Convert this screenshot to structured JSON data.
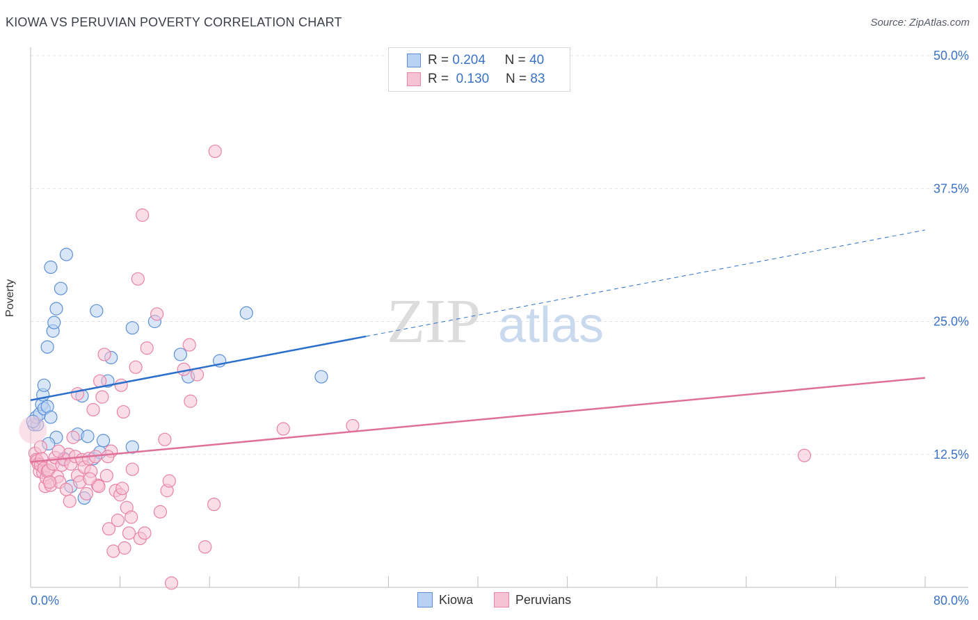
{
  "header": {
    "title": "KIOWA VS PERUVIAN POVERTY CORRELATION CHART",
    "source": "Source: ZipAtlas.com"
  },
  "watermark": {
    "zip": "ZIP",
    "atlas": "atlas"
  },
  "legend": {
    "kiowa": {
      "r_label": "R =",
      "r_value": "0.204",
      "n_label": "N =",
      "n_value": "40"
    },
    "peruvians": {
      "r_label": "R =",
      "r_value": "0.130",
      "n_label": "N =",
      "n_value": "83"
    }
  },
  "chart_data": {
    "type": "scatter",
    "title": "KIOWA VS PERUVIAN POVERTY CORRELATION CHART",
    "xlabel": "",
    "ylabel": "Poverty",
    "xlim": [
      0,
      80
    ],
    "ylim": [
      0,
      50
    ],
    "x_tick_labels": [
      "0.0%",
      "80.0%"
    ],
    "y_ticks": [
      12.5,
      25.0,
      37.5,
      50.0
    ],
    "y_tick_labels": [
      "12.5%",
      "25.0%",
      "37.5%",
      "50.0%"
    ],
    "grid": true,
    "legend_position": "bottom-center",
    "colors": {
      "kiowa": "#5b8fd6",
      "kiowa_fill": "#b9d1f2",
      "kiowa_line": "#2a6fcb",
      "peruvians": "#e882a6",
      "peruvians_fill": "#f6c3d4",
      "peruvians_line": "#e0709a"
    },
    "series": [
      {
        "name": "Kiowa",
        "r": 0.204,
        "n": 40,
        "trend": {
          "solid": [
            [
              0,
              17.6
            ],
            [
              30,
              23.6
            ]
          ],
          "dashed": [
            [
              30,
              23.6
            ],
            [
              80,
              33.6
            ]
          ]
        },
        "points": [
          [
            0.3,
            15.3
          ],
          [
            0.6,
            15.3
          ],
          [
            0.5,
            16.0
          ],
          [
            0.8,
            16.3
          ],
          [
            1.0,
            17.2
          ],
          [
            1.2,
            16.8
          ],
          [
            1.5,
            17.0
          ],
          [
            1.8,
            16.0
          ],
          [
            1.1,
            18.1
          ],
          [
            1.2,
            19.0
          ],
          [
            1.5,
            22.6
          ],
          [
            2.0,
            24.1
          ],
          [
            2.1,
            24.9
          ],
          [
            2.3,
            26.2
          ],
          [
            1.8,
            30.1
          ],
          [
            2.7,
            28.1
          ],
          [
            3.2,
            31.3
          ],
          [
            2.3,
            14.1
          ],
          [
            1.6,
            13.5
          ],
          [
            3.0,
            12.1
          ],
          [
            3.6,
            9.5
          ],
          [
            4.2,
            14.4
          ],
          [
            4.6,
            18.0
          ],
          [
            5.1,
            14.2
          ],
          [
            5.6,
            12.1
          ],
          [
            5.9,
            26.0
          ],
          [
            6.2,
            12.7
          ],
          [
            6.5,
            13.8
          ],
          [
            6.9,
            19.4
          ],
          [
            7.2,
            21.6
          ],
          [
            4.8,
            8.4
          ],
          [
            9.1,
            13.2
          ],
          [
            9.1,
            24.4
          ],
          [
            11.1,
            25.0
          ],
          [
            13.4,
            21.9
          ],
          [
            14.1,
            19.8
          ],
          [
            16.9,
            21.3
          ],
          [
            19.3,
            25.8
          ],
          [
            26.0,
            19.8
          ],
          [
            0.2,
            15.6
          ]
        ]
      },
      {
        "name": "Peruvians",
        "r": 0.13,
        "n": 83,
        "trend": {
          "solid": [
            [
              0,
              11.8
            ],
            [
              80,
              19.7
            ]
          ]
        },
        "points": [
          [
            0.4,
            12.6
          ],
          [
            0.5,
            12.0
          ],
          [
            0.6,
            11.9
          ],
          [
            0.7,
            11.6
          ],
          [
            0.8,
            10.9
          ],
          [
            0.9,
            11.5
          ],
          [
            1.0,
            12.1
          ],
          [
            1.1,
            10.8
          ],
          [
            1.2,
            11.2
          ],
          [
            1.3,
            9.5
          ],
          [
            1.4,
            10.3
          ],
          [
            1.5,
            10.9
          ],
          [
            1.6,
            11.0
          ],
          [
            1.8,
            9.6
          ],
          [
            2.0,
            11.6
          ],
          [
            2.2,
            12.2
          ],
          [
            2.4,
            10.4
          ],
          [
            2.6,
            9.9
          ],
          [
            2.8,
            11.5
          ],
          [
            3.0,
            12.0
          ],
          [
            3.2,
            9.2
          ],
          [
            3.4,
            12.5
          ],
          [
            3.6,
            11.6
          ],
          [
            3.8,
            14.1
          ],
          [
            4.0,
            12.3
          ],
          [
            4.2,
            10.5
          ],
          [
            4.4,
            9.9
          ],
          [
            4.6,
            12.0
          ],
          [
            4.8,
            11.3
          ],
          [
            5.0,
            8.8
          ],
          [
            5.2,
            12.1
          ],
          [
            5.4,
            10.9
          ],
          [
            5.6,
            16.7
          ],
          [
            5.8,
            12.3
          ],
          [
            6.0,
            9.6
          ],
          [
            6.2,
            19.4
          ],
          [
            6.4,
            17.9
          ],
          [
            6.6,
            21.9
          ],
          [
            6.8,
            10.5
          ],
          [
            7.0,
            5.5
          ],
          [
            7.2,
            12.8
          ],
          [
            7.4,
            3.4
          ],
          [
            7.6,
            9.1
          ],
          [
            7.8,
            6.3
          ],
          [
            8.0,
            8.7
          ],
          [
            8.2,
            9.3
          ],
          [
            8.4,
            3.7
          ],
          [
            8.6,
            7.5
          ],
          [
            8.8,
            5.1
          ],
          [
            9.0,
            6.6
          ],
          [
            8.3,
            16.5
          ],
          [
            8.1,
            19.0
          ],
          [
            9.4,
            20.7
          ],
          [
            9.6,
            29.0
          ],
          [
            9.8,
            4.6
          ],
          [
            10.0,
            35.0
          ],
          [
            10.2,
            5.1
          ],
          [
            10.4,
            22.5
          ],
          [
            11.3,
            25.7
          ],
          [
            11.6,
            7.1
          ],
          [
            12.0,
            13.9
          ],
          [
            12.2,
            9.1
          ],
          [
            12.4,
            10.0
          ],
          [
            12.6,
            0.4
          ],
          [
            13.7,
            20.5
          ],
          [
            14.2,
            22.8
          ],
          [
            14.3,
            17.5
          ],
          [
            14.9,
            20.0
          ],
          [
            15.6,
            3.8
          ],
          [
            16.4,
            7.8
          ],
          [
            16.5,
            41.0
          ],
          [
            22.6,
            14.9
          ],
          [
            28.8,
            15.2
          ],
          [
            69.2,
            12.4
          ],
          [
            3.5,
            8.1
          ],
          [
            5.3,
            10.2
          ],
          [
            6.9,
            12.3
          ],
          [
            9.1,
            11.1
          ],
          [
            4.2,
            18.2
          ],
          [
            2.5,
            12.8
          ],
          [
            0.9,
            13.2
          ],
          [
            1.7,
            9.9
          ],
          [
            6.1,
            9.5
          ]
        ]
      }
    ]
  },
  "bottom_legend": {
    "kiowa": "Kiowa",
    "peruvians": "Peruvians"
  }
}
